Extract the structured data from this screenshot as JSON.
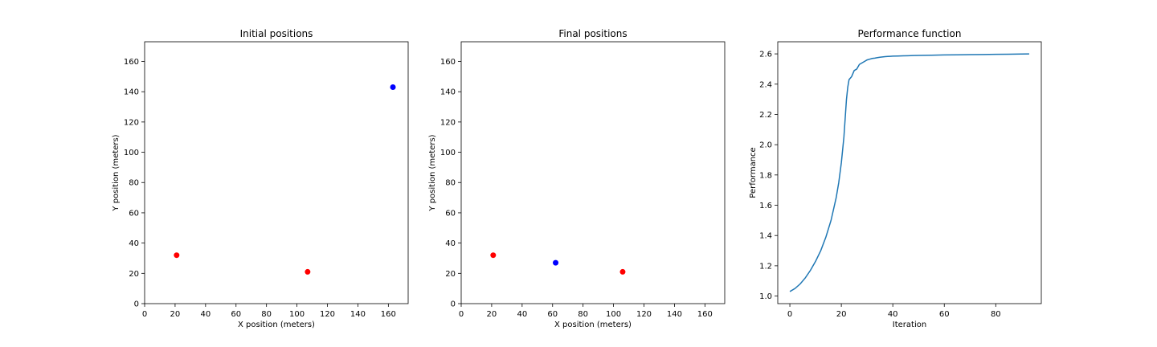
{
  "chart_data": [
    {
      "type": "scatter",
      "title": "Initial positions",
      "xlabel": "X position (meters)",
      "ylabel": "Y position (meters)",
      "xlim": [
        0,
        173
      ],
      "ylim": [
        0,
        173
      ],
      "xticks": [
        0,
        20,
        40,
        60,
        80,
        100,
        120,
        140,
        160
      ],
      "yticks": [
        0,
        20,
        40,
        60,
        80,
        100,
        120,
        140,
        160
      ],
      "grid": false,
      "points": [
        {
          "x": 21,
          "y": 32,
          "color": "#ff0000"
        },
        {
          "x": 107,
          "y": 21,
          "color": "#ff0000"
        },
        {
          "x": 163,
          "y": 143,
          "color": "#0000ff"
        }
      ]
    },
    {
      "type": "scatter",
      "title": "Final positions",
      "xlabel": "X position (meters)",
      "ylabel": "Y position (meters)",
      "xlim": [
        0,
        173
      ],
      "ylim": [
        0,
        173
      ],
      "xticks": [
        0,
        20,
        40,
        60,
        80,
        100,
        120,
        140,
        160
      ],
      "yticks": [
        0,
        20,
        40,
        60,
        80,
        100,
        120,
        140,
        160
      ],
      "grid": false,
      "points": [
        {
          "x": 21,
          "y": 32,
          "color": "#ff0000"
        },
        {
          "x": 106,
          "y": 21,
          "color": "#ff0000"
        },
        {
          "x": 62,
          "y": 27,
          "color": "#0000ff"
        }
      ]
    },
    {
      "type": "line",
      "title": "Performance function",
      "xlabel": "Iteration",
      "ylabel": "Performance",
      "xlim": [
        -4.7,
        97.7
      ],
      "ylim": [
        0.95,
        2.68
      ],
      "xticks": [
        0,
        20,
        40,
        60,
        80
      ],
      "yticks": [
        "1.0",
        "1.2",
        "1.4",
        "1.6",
        "1.8",
        "2.0",
        "2.2",
        "2.4",
        "2.6"
      ],
      "grid": false,
      "color": "#1f77b4",
      "x": [
        0,
        2,
        4,
        6,
        8,
        10,
        12,
        14,
        16,
        18,
        19,
        20,
        21,
        22,
        22.5,
        23,
        23.5,
        24,
        25,
        26,
        27,
        28,
        29,
        30,
        31,
        32,
        33,
        34,
        35,
        36,
        37,
        38,
        39,
        40,
        42,
        44,
        46,
        48,
        50,
        55,
        60,
        65,
        70,
        75,
        80,
        85,
        90,
        93
      ],
      "y": [
        1.03,
        1.05,
        1.08,
        1.12,
        1.17,
        1.23,
        1.3,
        1.39,
        1.5,
        1.65,
        1.75,
        1.88,
        2.05,
        2.3,
        2.38,
        2.43,
        2.44,
        2.45,
        2.49,
        2.5,
        2.53,
        2.54,
        2.55,
        2.56,
        2.565,
        2.57,
        2.572,
        2.575,
        2.578,
        2.58,
        2.582,
        2.583,
        2.584,
        2.585,
        2.586,
        2.587,
        2.588,
        2.589,
        2.59,
        2.591,
        2.593,
        2.594,
        2.595,
        2.596,
        2.597,
        2.598,
        2.599,
        2.6
      ]
    }
  ]
}
